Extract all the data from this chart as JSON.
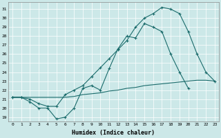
{
  "xlabel": "Humidex (Indice chaleur)",
  "bg_color": "#cce8e8",
  "line_color": "#1a6b6b",
  "grid_color": "#ffffff",
  "xlim": [
    -0.5,
    23.5
  ],
  "ylim": [
    18.5,
    31.8
  ],
  "yticks": [
    19,
    20,
    21,
    22,
    23,
    24,
    25,
    26,
    27,
    28,
    29,
    30,
    31
  ],
  "xticks": [
    0,
    1,
    2,
    3,
    4,
    5,
    6,
    7,
    8,
    9,
    10,
    11,
    12,
    13,
    14,
    15,
    16,
    17,
    18,
    19,
    20,
    21,
    22,
    23
  ],
  "line1_x": [
    0,
    1,
    2,
    3,
    4,
    5,
    6,
    7,
    8,
    9,
    10,
    11,
    12,
    13,
    14,
    15,
    16,
    17,
    18,
    19,
    20,
    21,
    22
  ],
  "line1_y": [
    21.2,
    21.2,
    20.7,
    20.0,
    20.0,
    18.8,
    19.0,
    20.0,
    22.2,
    22.5,
    22.0,
    24.4,
    26.6,
    28.0,
    27.8,
    29.4,
    29.0,
    28.5,
    26.0,
    24.0,
    22.2,
    null,
    null
  ],
  "line2_x": [
    0,
    1,
    2,
    3,
    4,
    5,
    6,
    7,
    8,
    9,
    10,
    11,
    12,
    13,
    14,
    15,
    16,
    17,
    18,
    19,
    20,
    21,
    22,
    23
  ],
  "line2_y": [
    21.2,
    21.2,
    21.2,
    21.2,
    21.2,
    21.2,
    21.2,
    21.3,
    21.5,
    21.6,
    21.7,
    21.9,
    22.0,
    22.2,
    22.3,
    22.5,
    22.6,
    22.7,
    22.8,
    22.9,
    23.0,
    23.1,
    23.1,
    23.0
  ],
  "line3_x": [
    0,
    1,
    2,
    3,
    4,
    5,
    6,
    7,
    8,
    9,
    10,
    11,
    12,
    13,
    14,
    15,
    16,
    17,
    18,
    19,
    20,
    21,
    22,
    23
  ],
  "line3_y": [
    21.2,
    21.2,
    21.0,
    20.5,
    20.2,
    20.2,
    21.5,
    22.0,
    22.5,
    23.5,
    24.5,
    25.5,
    26.5,
    27.5,
    29.0,
    30.0,
    30.5,
    31.2,
    31.0,
    30.5,
    28.5,
    26.0,
    24.0,
    23.0
  ]
}
